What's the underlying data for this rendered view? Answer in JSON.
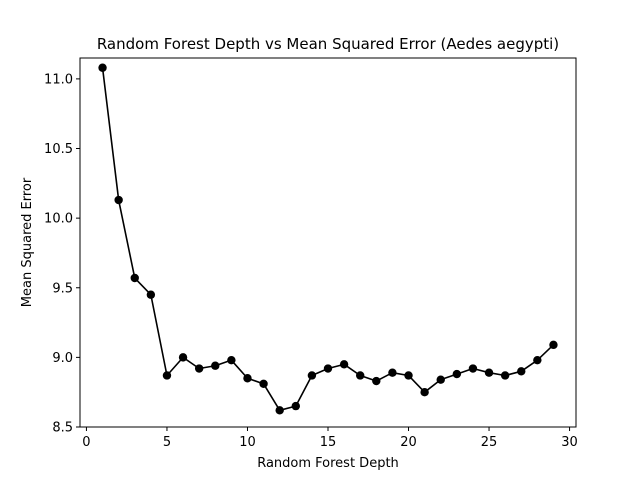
{
  "chart_data": {
    "type": "line",
    "title": "Random Forest Depth vs Mean Squared Error (Aedes aegypti)",
    "xlabel": "Random Forest Depth",
    "ylabel": "Mean Squared Error",
    "xlim": [
      -0.4,
      30.4
    ],
    "ylim": [
      8.5,
      11.15
    ],
    "xticks": [
      0,
      5,
      10,
      15,
      20,
      25,
      30
    ],
    "xtick_labels": [
      "0",
      "5",
      "10",
      "15",
      "20",
      "25",
      "30"
    ],
    "yticks": [
      8.5,
      9.0,
      9.5,
      10.0,
      10.5,
      11.0
    ],
    "ytick_labels": [
      "8.5",
      "9.0",
      "9.5",
      "10.0",
      "10.5",
      "11.0"
    ],
    "grid": false,
    "legend": "none",
    "series": [
      {
        "color": "#000000",
        "marker": "circle",
        "x": [
          1,
          2,
          3,
          4,
          5,
          6,
          7,
          8,
          9,
          10,
          11,
          12,
          13,
          14,
          15,
          16,
          17,
          18,
          19,
          20,
          21,
          22,
          23,
          24,
          25,
          26,
          27,
          28,
          29
        ],
        "y": [
          11.08,
          10.13,
          9.57,
          9.45,
          8.87,
          9.0,
          8.92,
          8.94,
          8.98,
          8.85,
          8.81,
          8.62,
          8.65,
          8.87,
          8.92,
          8.95,
          8.87,
          8.83,
          8.89,
          8.87,
          8.75,
          8.84,
          8.88,
          8.92,
          8.89,
          8.87,
          8.9,
          8.98,
          9.09
        ]
      }
    ]
  }
}
